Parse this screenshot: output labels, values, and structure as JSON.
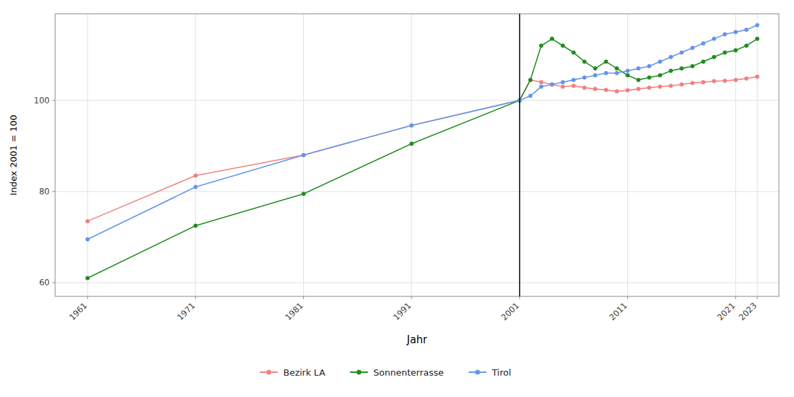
{
  "chart_data": {
    "type": "line",
    "xlabel": "Jahr",
    "ylabel": "Index 2001 = 100",
    "x": [
      1961,
      1971,
      1981,
      1991,
      2001,
      2002,
      2003,
      2004,
      2005,
      2006,
      2007,
      2008,
      2009,
      2010,
      2011,
      2012,
      2013,
      2014,
      2015,
      2016,
      2017,
      2018,
      2019,
      2020,
      2021,
      2022,
      2023
    ],
    "series": [
      {
        "name": "Bezirk LA",
        "color": "#f08080",
        "marker": "o",
        "values": [
          73.5,
          83.5,
          88.0,
          94.5,
          100.0,
          104.5,
          104.0,
          103.5,
          103.0,
          103.2,
          102.8,
          102.5,
          102.3,
          102.0,
          102.2,
          102.5,
          102.8,
          103.0,
          103.2,
          103.5,
          103.8,
          104.0,
          104.2,
          104.3,
          104.5,
          104.8,
          105.2
        ]
      },
      {
        "name": "Sonnenterrasse",
        "color": "#228B22",
        "marker": "o",
        "values": [
          61.0,
          72.5,
          79.5,
          90.5,
          100.0,
          104.5,
          112.0,
          113.5,
          112.0,
          110.5,
          108.5,
          107.0,
          108.5,
          107.0,
          105.5,
          104.5,
          105.0,
          105.5,
          106.5,
          107.0,
          107.5,
          108.5,
          109.5,
          110.5,
          111.0,
          112.0,
          113.5
        ]
      },
      {
        "name": "Tirol",
        "color": "#6495ed",
        "marker": "o",
        "values": [
          69.5,
          81.0,
          88.0,
          94.5,
          100.0,
          101.0,
          103.0,
          103.5,
          104.0,
          104.5,
          105.0,
          105.5,
          106.0,
          106.0,
          106.5,
          107.0,
          107.5,
          108.5,
          109.5,
          110.5,
          111.5,
          112.5,
          113.5,
          114.5,
          115.0,
          115.5,
          116.5
        ]
      }
    ],
    "vline": 2001,
    "xlim": [
      1958,
      2025
    ],
    "ylim": [
      57,
      119
    ],
    "xticks": [
      1961,
      1971,
      1981,
      1991,
      2001,
      2011,
      2021,
      2023
    ],
    "yticks": [
      60,
      80,
      100
    ],
    "grid": true,
    "legend": "bottom"
  }
}
